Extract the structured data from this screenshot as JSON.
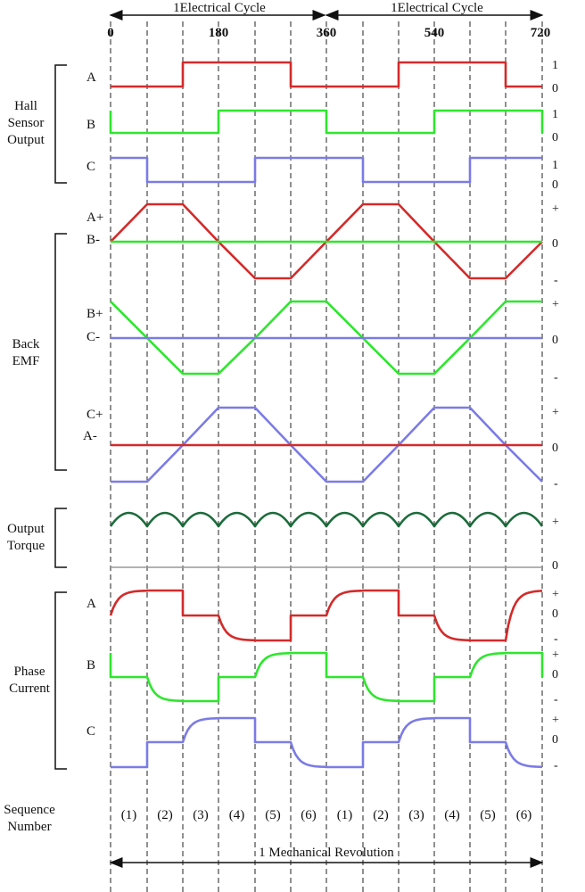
{
  "cycle_labels": [
    "1Electrical Cycle",
    "1Electrical Cycle"
  ],
  "angle_ticks": [
    "0",
    "180",
    "360",
    "540",
    "720"
  ],
  "groups": {
    "hall": [
      "Hall",
      "Sensor",
      "Output"
    ],
    "emf": [
      "Back",
      "EMF"
    ],
    "torque": [
      "Output",
      "Torque"
    ],
    "current": [
      "Phase",
      "Current"
    ],
    "sequence": [
      "Sequence",
      "Number"
    ]
  },
  "hall": {
    "labels": [
      "A",
      "B",
      "C"
    ],
    "levels": [
      [
        "1",
        "0"
      ],
      [
        "1",
        "0"
      ],
      [
        "1",
        "0"
      ]
    ]
  },
  "emf": {
    "labels": [
      [
        "A+",
        "B-"
      ],
      [
        "B+",
        "C-"
      ],
      [
        "C+",
        "A-"
      ]
    ],
    "levels": [
      [
        "+",
        "0",
        "-"
      ],
      [
        "+",
        "0",
        "-"
      ],
      [
        "+",
        "0",
        "-"
      ]
    ]
  },
  "torque": {
    "levels": [
      "+",
      "0"
    ]
  },
  "current": {
    "labels": [
      "A",
      "B",
      "C"
    ],
    "levels": [
      [
        "+",
        "0",
        "-"
      ],
      [
        "+",
        "0",
        "-"
      ],
      [
        "+",
        "0",
        "-"
      ]
    ]
  },
  "sequence": [
    "(1)",
    "(2)",
    "(3)",
    "(4)",
    "(5)",
    "(6)",
    "(1)",
    "(2)",
    "(3)",
    "(4)",
    "(5)",
    "(6)"
  ],
  "mechanical_label": "1 Mechanical Revolution",
  "colors": {
    "phase_a": "#d42a2a",
    "phase_b": "#2ee62e",
    "phase_c": "#7b7be6",
    "torque": "#1b6b3a"
  }
}
